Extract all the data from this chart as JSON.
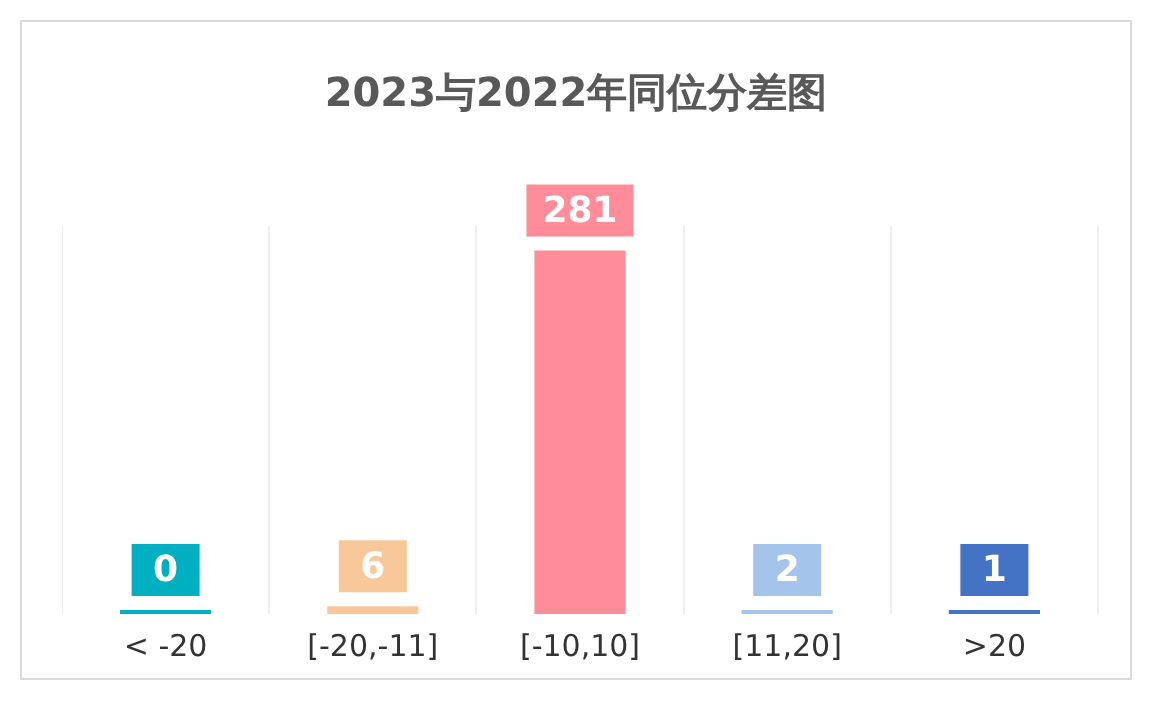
{
  "chart_data": {
    "type": "bar",
    "title": "2023与2022年同位分差图",
    "categories": [
      "< -20",
      "[-20,-11]",
      "[-10,10]",
      "[11,20]",
      ">20"
    ],
    "values": [
      0,
      6,
      281,
      2,
      1
    ],
    "colors": [
      "#00b0c0",
      "#f8c89a",
      "#ff8c98",
      "#a4c4ec",
      "#4472c4"
    ],
    "data_labels": true,
    "grid": "x",
    "legend": false
  }
}
